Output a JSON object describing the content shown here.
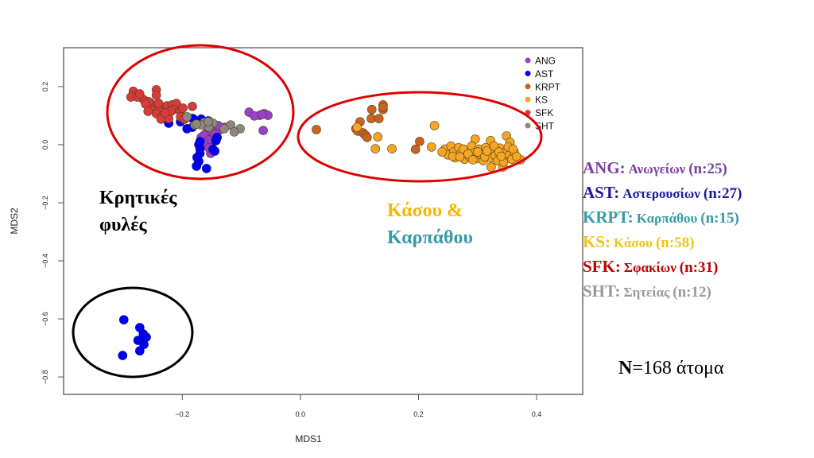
{
  "chart_data": {
    "type": "scatter",
    "xlabel": "MDS1",
    "ylabel": "MDS2",
    "xlim": [
      -0.401,
      0.478
    ],
    "ylim": [
      -0.86,
      0.334
    ],
    "xticks": [
      -0.2,
      0.0,
      0.2,
      0.4
    ],
    "xtick_labels": [
      "−0.2",
      "0.0",
      "0.2",
      "0.4"
    ],
    "yticks": [
      0.2,
      0.0,
      -0.2,
      -0.4,
      -0.6,
      -0.8
    ],
    "ytick_labels": [
      "0.2",
      "0.0",
      "−0.2",
      "−0.4",
      "−0.6",
      "−0.8"
    ],
    "grid": false,
    "legend_placement": "top-right",
    "series": [
      {
        "name": "ANG",
        "color": "#9b3fd1",
        "points": [
          [
            -0.087,
            0.112
          ],
          [
            -0.069,
            0.101
          ],
          [
            -0.061,
            0.107
          ],
          [
            -0.055,
            0.101
          ],
          [
            -0.063,
            0.049
          ],
          [
            -0.132,
            0.055
          ],
          [
            -0.159,
            0.041
          ],
          [
            -0.152,
            0.033
          ],
          [
            -0.168,
            0.025
          ],
          [
            -0.162,
            0.019
          ],
          [
            -0.149,
            0.011
          ],
          [
            -0.156,
            0.0
          ],
          [
            -0.152,
            -0.03
          ],
          [
            -0.128,
            0.06
          ],
          [
            -0.143,
            0.047
          ],
          [
            -0.136,
            0.052
          ],
          [
            -0.163,
            0.033
          ],
          [
            -0.148,
            0.025
          ],
          [
            -0.065,
            0.104
          ],
          [
            -0.156,
            0.016
          ],
          [
            -0.145,
            0.038
          ],
          [
            -0.164,
            0.005
          ],
          [
            -0.139,
            0.066
          ],
          [
            -0.155,
            -0.011
          ],
          [
            -0.078,
            0.099
          ]
        ]
      },
      {
        "name": "AST",
        "color": "#0000ee",
        "points": [
          [
            -0.223,
            0.074
          ],
          [
            -0.203,
            0.079
          ],
          [
            -0.192,
            0.055
          ],
          [
            -0.182,
            0.09
          ],
          [
            -0.156,
            0.082
          ],
          [
            -0.141,
            0.025
          ],
          [
            -0.172,
            0.0
          ],
          [
            -0.17,
            -0.014
          ],
          [
            -0.17,
            -0.03
          ],
          [
            -0.172,
            -0.058
          ],
          [
            -0.176,
            -0.074
          ],
          [
            -0.159,
            -0.082
          ],
          [
            -0.148,
            -0.016
          ],
          [
            -0.145,
            -0.022
          ],
          [
            -0.183,
            0.06
          ],
          [
            -0.168,
            0.088
          ],
          [
            -0.143,
            0.014
          ],
          [
            -0.17,
            0.011
          ],
          [
            -0.175,
            -0.044
          ],
          [
            -0.299,
            -0.603
          ],
          [
            -0.272,
            -0.63
          ],
          [
            -0.266,
            -0.652
          ],
          [
            -0.261,
            -0.663
          ],
          [
            -0.275,
            -0.674
          ],
          [
            -0.265,
            -0.688
          ],
          [
            -0.272,
            -0.71
          ],
          [
            -0.301,
            -0.726
          ]
        ]
      },
      {
        "name": "KRPT",
        "color": "#c8641e",
        "points": [
          [
            0.027,
            0.052
          ],
          [
            0.094,
            0.055
          ],
          [
            0.097,
            0.047
          ],
          [
            0.106,
            0.041
          ],
          [
            0.11,
            0.033
          ],
          [
            0.113,
            0.025
          ],
          [
            0.101,
            0.079
          ],
          [
            0.121,
            0.121
          ],
          [
            0.12,
            0.09
          ],
          [
            0.133,
            0.09
          ],
          [
            0.14,
            0.137
          ],
          [
            0.14,
            0.121
          ],
          [
            0.202,
            0.011
          ],
          [
            0.195,
            -0.016
          ],
          [
            0.14,
            0.129
          ]
        ]
      },
      {
        "name": "KS",
        "color": "#f5a623",
        "points": [
          [
            0.096,
            0.06
          ],
          [
            0.131,
            0.027
          ],
          [
            0.127,
            -0.014
          ],
          [
            0.155,
            -0.014
          ],
          [
            0.227,
            0.066
          ],
          [
            0.222,
            -0.008
          ],
          [
            0.296,
            0.019
          ],
          [
            0.322,
            0.014
          ],
          [
            0.349,
            0.03
          ],
          [
            0.355,
            0.008
          ],
          [
            0.373,
            -0.052
          ],
          [
            0.323,
            -0.077
          ],
          [
            0.343,
            -0.077
          ],
          [
            0.245,
            -0.015
          ],
          [
            0.25,
            -0.035
          ],
          [
            0.255,
            -0.005
          ],
          [
            0.26,
            -0.025
          ],
          [
            0.262,
            -0.045
          ],
          [
            0.268,
            -0.01
          ],
          [
            0.272,
            -0.03
          ],
          [
            0.278,
            -0.05
          ],
          [
            0.282,
            -0.02
          ],
          [
            0.286,
            -0.04
          ],
          [
            0.29,
            -0.005
          ],
          [
            0.294,
            -0.028
          ],
          [
            0.298,
            -0.048
          ],
          [
            0.302,
            -0.015
          ],
          [
            0.306,
            -0.035
          ],
          [
            0.31,
            -0.055
          ],
          [
            0.314,
            -0.01
          ],
          [
            0.318,
            -0.03
          ],
          [
            0.322,
            -0.045
          ],
          [
            0.326,
            -0.02
          ],
          [
            0.33,
            -0.038
          ],
          [
            0.334,
            -0.055
          ],
          [
            0.338,
            -0.012
          ],
          [
            0.342,
            -0.03
          ],
          [
            0.346,
            -0.045
          ],
          [
            0.35,
            -0.02
          ],
          [
            0.354,
            -0.035
          ],
          [
            0.358,
            -0.05
          ],
          [
            0.362,
            -0.025
          ],
          [
            0.366,
            -0.04
          ],
          [
            0.24,
            -0.025
          ],
          [
            0.258,
            -0.04
          ],
          [
            0.276,
            -0.015
          ],
          [
            0.284,
            -0.032
          ],
          [
            0.3,
            -0.025
          ],
          [
            0.312,
            -0.042
          ],
          [
            0.328,
            -0.005
          ],
          [
            0.336,
            -0.025
          ],
          [
            0.344,
            -0.06
          ],
          [
            0.352,
            -0.008
          ],
          [
            0.36,
            -0.015
          ],
          [
            0.27,
            -0.042
          ],
          [
            0.292,
            -0.052
          ],
          [
            0.316,
            -0.022
          ],
          [
            0.34,
            -0.04
          ]
        ]
      },
      {
        "name": "SFK",
        "color": "#d93a3a",
        "points": [
          [
            -0.283,
            0.184
          ],
          [
            -0.28,
            0.17
          ],
          [
            -0.266,
            0.156
          ],
          [
            -0.253,
            0.142
          ],
          [
            -0.244,
            0.189
          ],
          [
            -0.244,
            0.17
          ],
          [
            -0.249,
            0.129
          ],
          [
            -0.24,
            0.121
          ],
          [
            -0.253,
            0.121
          ],
          [
            -0.244,
            0.107
          ],
          [
            -0.233,
            0.101
          ],
          [
            -0.223,
            0.09
          ],
          [
            -0.236,
            0.088
          ],
          [
            -0.226,
            0.134
          ],
          [
            -0.217,
            0.137
          ],
          [
            -0.21,
            0.142
          ],
          [
            -0.215,
            0.121
          ],
          [
            -0.203,
            0.115
          ],
          [
            -0.183,
            0.132
          ],
          [
            -0.203,
            0.096
          ],
          [
            -0.287,
            0.164
          ],
          [
            -0.276,
            0.164
          ],
          [
            -0.257,
            0.148
          ],
          [
            -0.219,
            0.115
          ],
          [
            -0.24,
            0.142
          ],
          [
            -0.272,
            0.175
          ],
          [
            -0.262,
            0.14
          ],
          [
            -0.229,
            0.11
          ],
          [
            -0.196,
            0.088
          ],
          [
            -0.258,
            0.115
          ],
          [
            -0.199,
            0.126
          ]
        ]
      },
      {
        "name": "SHT",
        "color": "#8a8a80",
        "points": [
          [
            -0.192,
            0.096
          ],
          [
            -0.179,
            0.068
          ],
          [
            -0.163,
            0.077
          ],
          [
            -0.148,
            0.074
          ],
          [
            -0.155,
            0.06
          ],
          [
            -0.118,
            0.068
          ],
          [
            -0.102,
            0.055
          ],
          [
            -0.112,
            0.044
          ],
          [
            -0.129,
            0.055
          ],
          [
            -0.168,
            0.068
          ],
          [
            -0.156,
            0.079
          ],
          [
            -0.176,
            0.071
          ]
        ]
      }
    ]
  },
  "annotations": {
    "cretan_line1": "Κρητικές",
    "cretan_line2": "φυλές",
    "kasos_line": "Κάσου &",
    "karpathos_line": "Καρπάθου",
    "kasos_color": "#f5b800",
    "karpathos_color": "#3a9aa8"
  },
  "side_legend": [
    {
      "code": "ANG:",
      "name": "Ανωγείων",
      "n": "(n:25)",
      "color": "#7b3fa0"
    },
    {
      "code": "AST:",
      "name": "Αστερουσίων",
      "n": "(n:27)",
      "color": "#1a1aa0"
    },
    {
      "code": "KRPT:",
      "name": "Καρπάθου",
      "n": "(n:15)",
      "color": "#3a9aa8"
    },
    {
      "code": "KS:",
      "name": "Κάσου",
      "n": "(n:58)",
      "color": "#f0c419"
    },
    {
      "code": "SFK:",
      "name": "Σφακίων",
      "n": "(n:31)",
      "color": "#c00000"
    },
    {
      "code": "SHT:",
      "name": "Σητείας",
      "n": "(n:12)",
      "color": "#999999"
    }
  ],
  "total": {
    "label": "N",
    "value": "=168 άτομα"
  }
}
